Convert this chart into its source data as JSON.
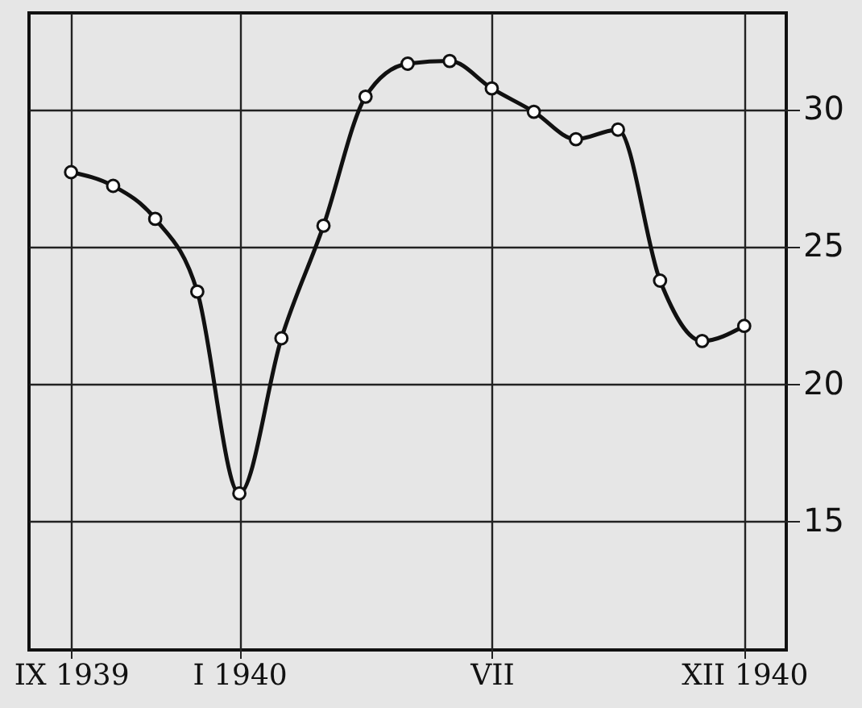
{
  "chart_data": {
    "type": "line",
    "categories": [
      "IX 1939",
      null,
      null,
      null,
      "I 1940",
      null,
      null,
      null,
      null,
      null,
      "VII",
      null,
      null,
      null,
      null,
      null,
      "XII 1940"
    ],
    "series": [
      {
        "color": "#111111",
        "values": [
          27.7,
          27.2,
          26.0,
          23.35,
          16.0,
          21.65,
          25.75,
          30.45,
          31.65,
          31.75,
          30.75,
          29.9,
          28.9,
          29.25,
          23.75,
          21.55,
          22.1
        ]
      }
    ],
    "ylim": [
      10.3,
      33.5
    ],
    "yticks": [
      15,
      20,
      25,
      30
    ],
    "grid": true,
    "marker": "circle",
    "line_style": "solid"
  }
}
